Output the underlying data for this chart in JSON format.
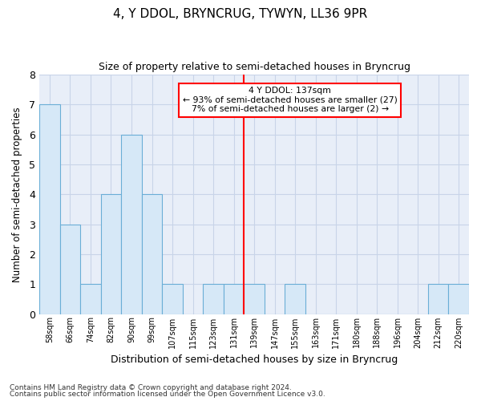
{
  "title": "4, Y DDOL, BRYNCRUG, TYWYN, LL36 9PR",
  "subtitle": "Size of property relative to semi-detached houses in Bryncrug",
  "xlabel": "Distribution of semi-detached houses by size in Bryncrug",
  "ylabel": "Number of semi-detached properties",
  "categories": [
    "58sqm",
    "66sqm",
    "74sqm",
    "82sqm",
    "90sqm",
    "99sqm",
    "107sqm",
    "115sqm",
    "123sqm",
    "131sqm",
    "139sqm",
    "147sqm",
    "155sqm",
    "163sqm",
    "171sqm",
    "180sqm",
    "188sqm",
    "196sqm",
    "204sqm",
    "212sqm",
    "220sqm"
  ],
  "values": [
    7,
    3,
    1,
    4,
    6,
    4,
    1,
    0,
    1,
    1,
    1,
    0,
    1,
    0,
    0,
    0,
    0,
    0,
    0,
    1,
    1
  ],
  "bar_color": "#d6e8f7",
  "bar_edge_color": "#6aaed6",
  "grid_color": "#c8d4e8",
  "background_color": "#ffffff",
  "axes_facecolor": "#e8eef8",
  "red_line_index": 10,
  "annotation_title": "4 Y DDOL: 137sqm",
  "annotation_line1": "← 93% of semi-detached houses are smaller (27)",
  "annotation_line2": "7% of semi-detached houses are larger (2) →",
  "footnote1": "Contains HM Land Registry data © Crown copyright and database right 2024.",
  "footnote2": "Contains public sector information licensed under the Open Government Licence v3.0.",
  "ylim": [
    0,
    8
  ],
  "yticks": [
    0,
    1,
    2,
    3,
    4,
    5,
    6,
    7,
    8
  ]
}
